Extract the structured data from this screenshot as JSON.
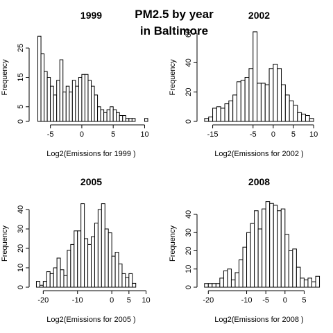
{
  "figure": {
    "title_line1": "PM2.5 by year",
    "title_line2": "in Baltimore"
  },
  "chart_data": [
    {
      "type": "bar",
      "title": "1999",
      "xlabel": "Log2(Emissions for  1999 )",
      "ylabel": "Frequency",
      "xlim": [
        -7.5,
        10.5
      ],
      "ylim": [
        0,
        30
      ],
      "xticks": [
        -5,
        0,
        5,
        10
      ],
      "yticks": [
        0,
        5,
        15,
        25
      ],
      "bin_start": -7,
      "bin_width": 0.5,
      "values": [
        29,
        23,
        17,
        15,
        12,
        9,
        14,
        21,
        10,
        12,
        10,
        14,
        12,
        15,
        16,
        16,
        14,
        12,
        9,
        5,
        4,
        3,
        4,
        5,
        4,
        3,
        2,
        2,
        1,
        1,
        1,
        0,
        0,
        0,
        1
      ]
    },
    {
      "type": "bar",
      "title": "2002",
      "xlabel": "Log2(Emissions for  2002 )",
      "ylabel": "Frequency",
      "xlim": [
        -17.5,
        10.5
      ],
      "ylim": [
        0,
        60
      ],
      "xticks": [
        -15,
        -5,
        0,
        5,
        10
      ],
      "yticks": [
        0,
        20,
        40,
        60
      ],
      "bin_start": -17,
      "bin_width": 1,
      "values": [
        2,
        3,
        9,
        10,
        9,
        12,
        14,
        18,
        27,
        28,
        30,
        36,
        61,
        26,
        26,
        25,
        36,
        39,
        36,
        25,
        18,
        14,
        11,
        6,
        5,
        4,
        2
      ]
    },
    {
      "type": "bar",
      "title": "2005",
      "xlabel": "Log2(Emissions for  2005 )",
      "ylabel": "Frequency",
      "xlim": [
        -22.5,
        10.5
      ],
      "ylim": [
        0,
        45
      ],
      "xticks": [
        -20,
        -10,
        0,
        5,
        10
      ],
      "yticks": [
        0,
        10,
        20,
        30,
        40
      ],
      "bin_start": -22,
      "bin_width": 1,
      "values": [
        3,
        1,
        3,
        8,
        7,
        10,
        15,
        9,
        6,
        19,
        22,
        29,
        29,
        43,
        25,
        22,
        26,
        33,
        40,
        43,
        30,
        28,
        16,
        18,
        12,
        7,
        5,
        7,
        2
      ]
    },
    {
      "type": "bar",
      "title": "2008",
      "xlabel": "Log2(Emissions for  2008 )",
      "ylabel": "Frequency",
      "xlim": [
        -21.5,
        8
      ],
      "ylim": [
        0,
        48
      ],
      "xticks": [
        -20,
        -10,
        -5,
        0,
        5
      ],
      "yticks": [
        0,
        10,
        20,
        30,
        40
      ],
      "bin_start": -21,
      "bin_width": 1,
      "values": [
        2,
        2,
        2,
        2,
        5,
        9,
        10,
        4,
        8,
        15,
        22,
        30,
        35,
        42,
        32,
        43,
        47,
        46,
        45,
        42,
        43,
        29,
        20,
        21,
        11,
        5,
        4,
        5,
        3,
        6
      ]
    }
  ]
}
